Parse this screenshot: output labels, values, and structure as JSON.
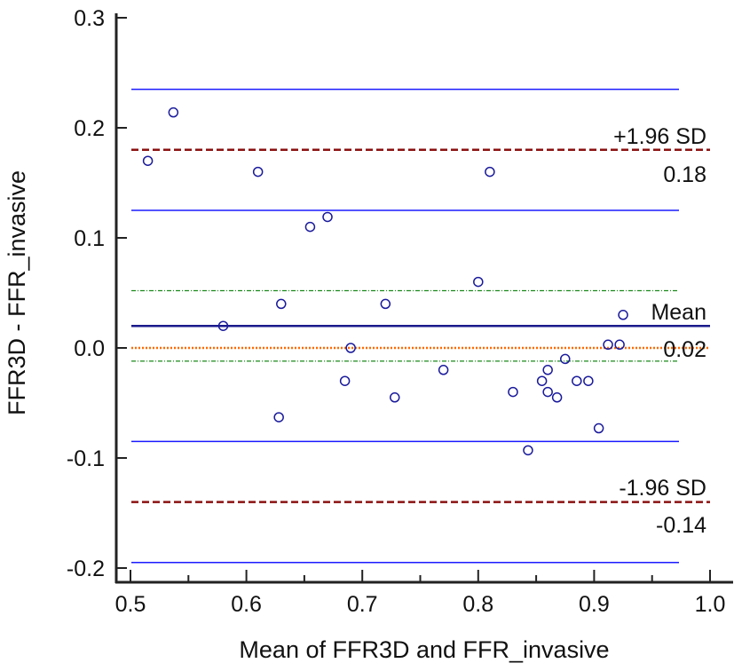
{
  "chart_data": {
    "type": "scatter",
    "title": "",
    "xlabel": "Mean of FFR3D and FFR_invasive",
    "ylabel": "FFR3D - FFR_invasive",
    "xlim": [
      0.5,
      1.0
    ],
    "ylim": [
      -0.2,
      0.3
    ],
    "xticks": [
      "0.5",
      "0.6",
      "0.7",
      "0.8",
      "0.9",
      "1.0"
    ],
    "yticks": [
      "-0.2",
      "-0.1",
      "0.0",
      "0.1",
      "0.2",
      "0.3"
    ],
    "grid": false,
    "points": [
      [
        0.515,
        0.17
      ],
      [
        0.537,
        0.214
      ],
      [
        0.61,
        0.16
      ],
      [
        0.655,
        0.11
      ],
      [
        0.67,
        0.119
      ],
      [
        0.81,
        0.16
      ],
      [
        0.8,
        0.06
      ],
      [
        0.63,
        0.04
      ],
      [
        0.72,
        0.04
      ],
      [
        0.58,
        0.02
      ],
      [
        0.69,
        0.0
      ],
      [
        0.925,
        0.03
      ],
      [
        0.912,
        0.003
      ],
      [
        0.922,
        0.003
      ],
      [
        0.875,
        -0.01
      ],
      [
        0.77,
        -0.02
      ],
      [
        0.685,
        -0.03
      ],
      [
        0.728,
        -0.045
      ],
      [
        0.83,
        -0.04
      ],
      [
        0.855,
        -0.03
      ],
      [
        0.86,
        -0.02
      ],
      [
        0.86,
        -0.04
      ],
      [
        0.868,
        -0.045
      ],
      [
        0.885,
        -0.03
      ],
      [
        0.895,
        -0.03
      ],
      [
        0.628,
        -0.063
      ],
      [
        0.904,
        -0.073
      ],
      [
        0.843,
        -0.093
      ]
    ],
    "reference_lines": {
      "mean": {
        "value": 0.02,
        "label": "Mean",
        "value_label": "0.02",
        "color": "#1a1a8c"
      },
      "upper_loa": {
        "value": 0.18,
        "label": "+1.96 SD",
        "value_label": "0.18",
        "color": "#8b1010"
      },
      "lower_loa": {
        "value": -0.14,
        "label": "-1.96 SD",
        "value_label": "-0.14",
        "color": "#8b1010"
      },
      "zero": {
        "value": 0.0,
        "color": "#ff6a00"
      },
      "mean_ci": {
        "values": [
          0.052,
          -0.012
        ],
        "color": "#1a8a1a"
      },
      "loa_ci": {
        "values": [
          0.235,
          0.125,
          -0.085,
          -0.195
        ],
        "color": "#1a1aff"
      }
    },
    "marker_color": "#1a1a9c"
  }
}
